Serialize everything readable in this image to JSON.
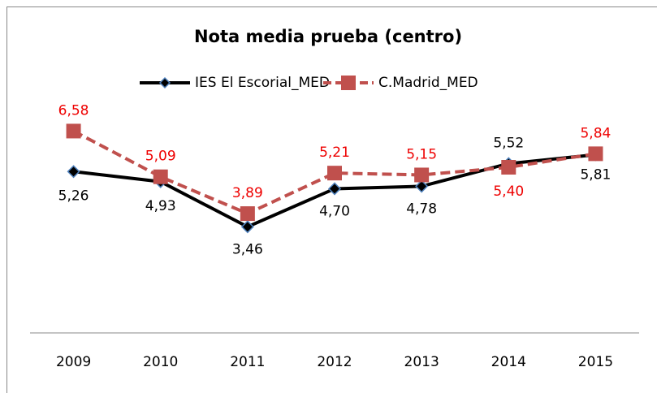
{
  "chart_data": {
    "type": "line",
    "title": "Nota media prueba (centro)",
    "categories": [
      "2009",
      "2010",
      "2011",
      "2012",
      "2013",
      "2014",
      "2015"
    ],
    "ylim": [
      0,
      9
    ],
    "legend": "top",
    "series": [
      {
        "name": "IES El Escorial_MED",
        "color": "#000000",
        "marker": "diamond",
        "values": [
          5.26,
          4.93,
          3.46,
          4.7,
          4.78,
          5.52,
          5.81
        ],
        "value_labels": [
          "5,26",
          "4,93",
          "3,46",
          "4,70",
          "4,78",
          "5,52",
          "5,81"
        ]
      },
      {
        "name": "C.Madrid_MED",
        "color": "#c0504d",
        "marker": "square",
        "dashed": true,
        "values": [
          6.58,
          5.09,
          3.89,
          5.21,
          5.15,
          5.4,
          5.84
        ],
        "value_labels": [
          "6,58",
          "5,09",
          "3,89",
          "5,21",
          "5,15",
          "5,40",
          "5,84"
        ]
      }
    ]
  }
}
